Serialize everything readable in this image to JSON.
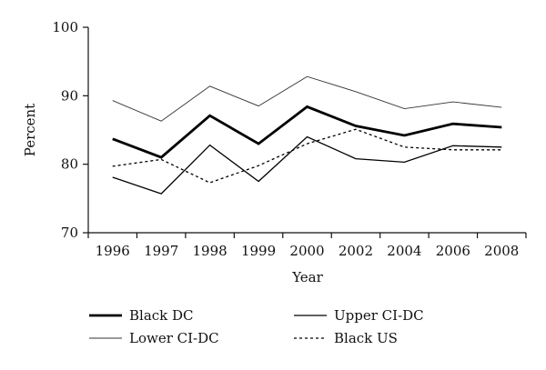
{
  "chart_data": {
    "type": "line",
    "title": "",
    "xlabel": "Year",
    "ylabel": "Percent",
    "categories": [
      "1996",
      "1997",
      "1998",
      "1999",
      "2000",
      "2002",
      "2004",
      "2006",
      "2008"
    ],
    "ylim": [
      70,
      100
    ],
    "yticks": [
      70,
      80,
      90,
      100
    ],
    "grid": false,
    "legend_position": "bottom",
    "series": [
      {
        "name": "Black DC",
        "style": "thick-solid",
        "color": "#000000",
        "values": [
          83.7,
          81.0,
          87.1,
          83.0,
          88.4,
          85.6,
          84.2,
          85.9,
          85.4
        ]
      },
      {
        "name": "Upper CI-DC",
        "style": "solid",
        "color": "#000000",
        "values": [
          78.1,
          75.7,
          82.8,
          77.5,
          84.0,
          80.8,
          80.3,
          82.7,
          82.5
        ]
      },
      {
        "name": "Lower CI-DC",
        "style": "thin-solid",
        "color": "#333333",
        "values": [
          89.3,
          86.3,
          91.4,
          88.5,
          92.8,
          90.6,
          88.1,
          89.1,
          88.3
        ]
      },
      {
        "name": "Black US",
        "style": "dotted",
        "color": "#000000",
        "values": [
          79.7,
          80.7,
          77.3,
          79.8,
          83.0,
          85.1,
          82.5,
          82.1,
          82.1
        ]
      }
    ]
  }
}
